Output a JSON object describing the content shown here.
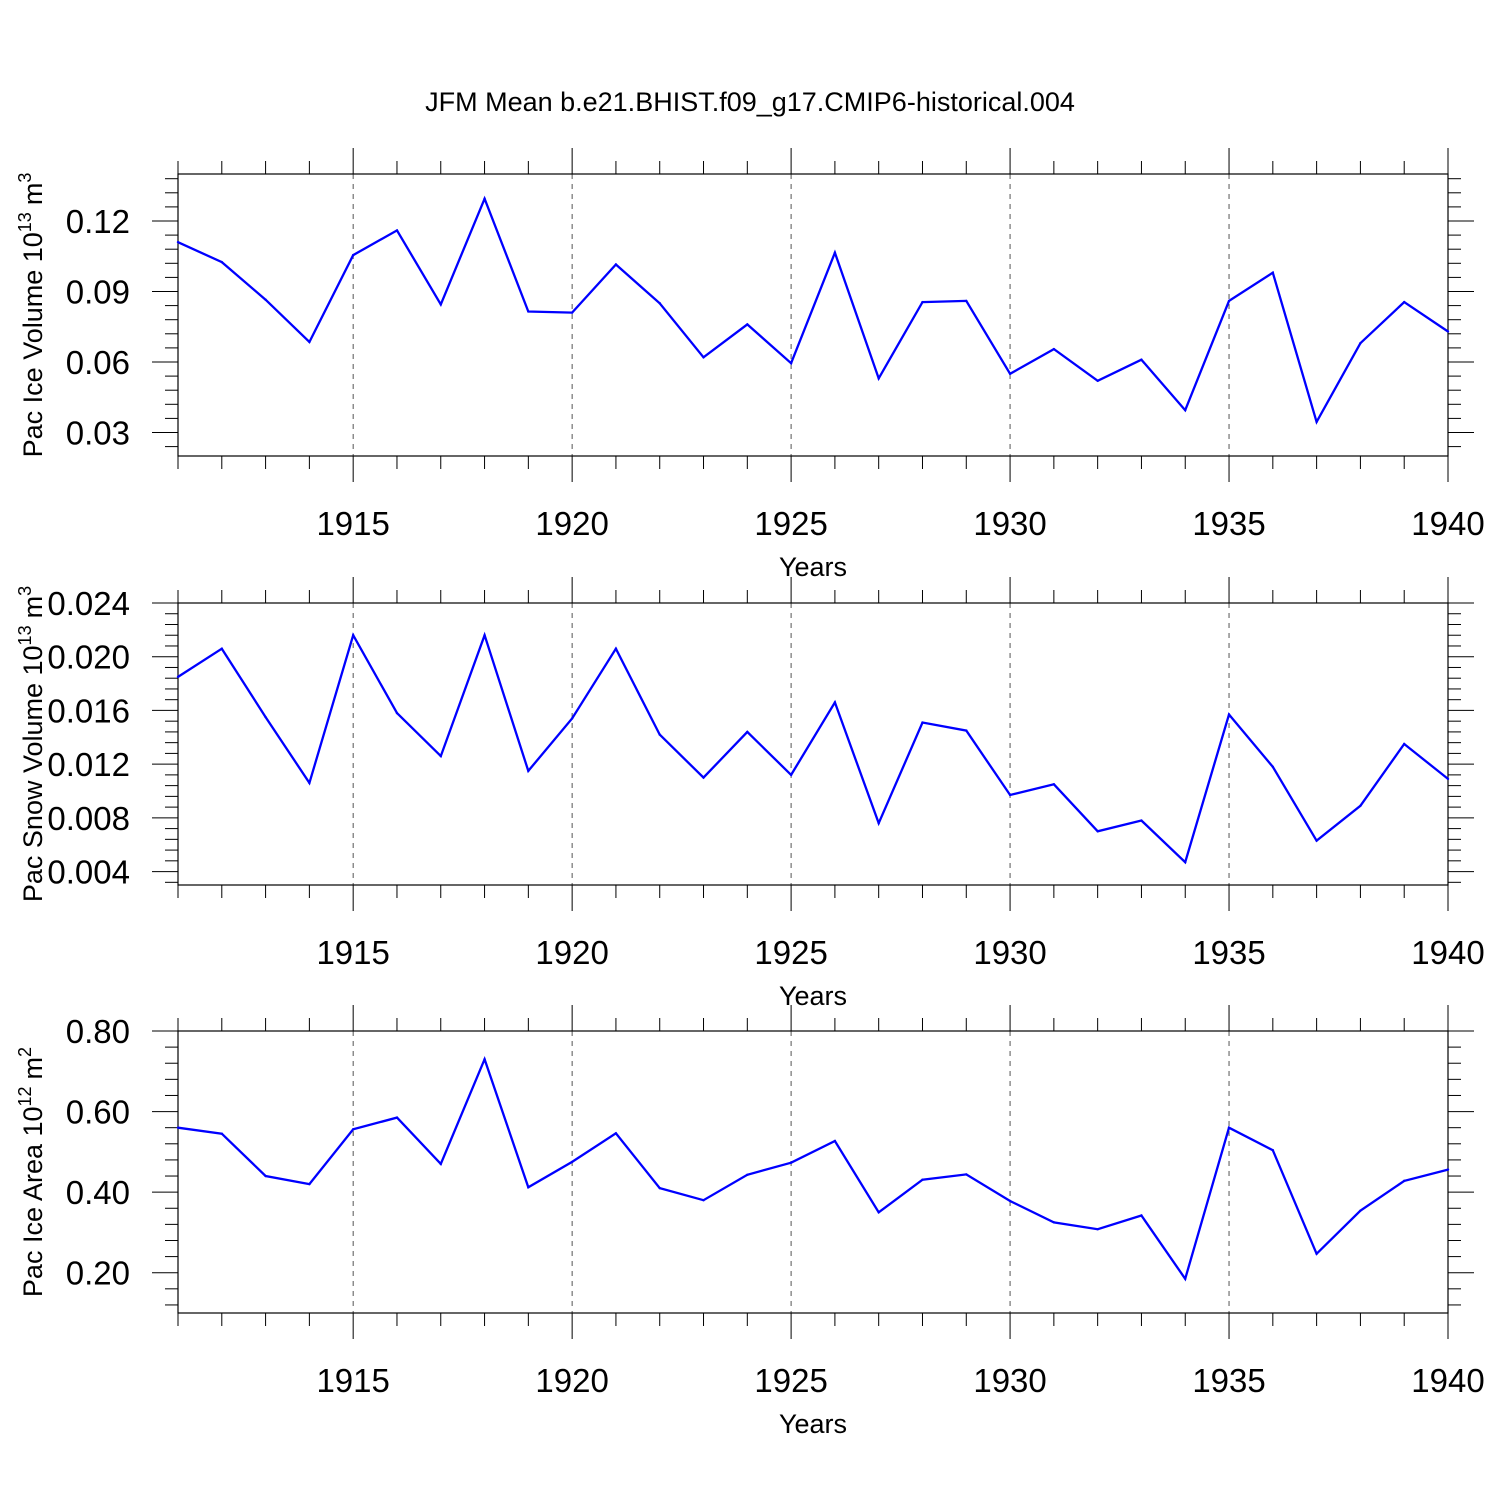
{
  "title": "JFM Mean b.e21.BHIST.f09_g17.CMIP6-historical.004",
  "colors": {
    "line": "#0000ff",
    "axis": "#000000",
    "grid": "#555555"
  },
  "chart_data": [
    {
      "type": "line",
      "ylabel": "Pac Ice Volume 10",
      "ylabel_exp": "13",
      "ylabel_unit": "m",
      "ylabel_unit_exp": "3",
      "xlabel": "Years",
      "xlim": [
        1911,
        1940
      ],
      "ylim": [
        0.02,
        0.14
      ],
      "xticks": [
        "1915",
        "1920",
        "1925",
        "1930",
        "1935",
        "1940"
      ],
      "yticks": [
        "0.03",
        "0.06",
        "0.09",
        "0.12"
      ],
      "x": [
        1911,
        1912,
        1913,
        1914,
        1915,
        1916,
        1917,
        1918,
        1919,
        1920,
        1921,
        1922,
        1923,
        1924,
        1925,
        1926,
        1927,
        1928,
        1929,
        1930,
        1931,
        1932,
        1933,
        1934,
        1935,
        1936,
        1937,
        1938,
        1939,
        1940
      ],
      "values": [
        0.111,
        0.1025,
        0.0865,
        0.0685,
        0.1055,
        0.116,
        0.0845,
        0.1295,
        0.0815,
        0.081,
        0.1015,
        0.085,
        0.062,
        0.076,
        0.0595,
        0.1065,
        0.053,
        0.0855,
        0.086,
        0.055,
        0.0655,
        0.052,
        0.061,
        0.0395,
        0.086,
        0.098,
        0.0345,
        0.068,
        0.0855,
        0.073
      ]
    },
    {
      "type": "line",
      "ylabel": "Pac Snow Volume 10",
      "ylabel_exp": "13",
      "ylabel_unit": "m",
      "ylabel_unit_exp": "3",
      "xlabel": "Years",
      "xlim": [
        1911,
        1940
      ],
      "ylim": [
        0.003,
        0.024
      ],
      "xticks": [
        "1915",
        "1920",
        "1925",
        "1930",
        "1935",
        "1940"
      ],
      "yticks": [
        "0.004",
        "0.008",
        "0.012",
        "0.016",
        "0.020",
        "0.024"
      ],
      "x": [
        1911,
        1912,
        1913,
        1914,
        1915,
        1916,
        1917,
        1918,
        1919,
        1920,
        1921,
        1922,
        1923,
        1924,
        1925,
        1926,
        1927,
        1928,
        1929,
        1930,
        1931,
        1932,
        1933,
        1934,
        1935,
        1936,
        1937,
        1938,
        1939,
        1940
      ],
      "values": [
        0.0185,
        0.0206,
        0.0155,
        0.0106,
        0.0216,
        0.0158,
        0.0126,
        0.0216,
        0.0115,
        0.0154,
        0.0206,
        0.0142,
        0.011,
        0.0144,
        0.0112,
        0.0166,
        0.0076,
        0.0151,
        0.0145,
        0.0097,
        0.0105,
        0.007,
        0.0078,
        0.0047,
        0.0157,
        0.0118,
        0.0063,
        0.0089,
        0.0135,
        0.0109
      ]
    },
    {
      "type": "line",
      "ylabel": "Pac Ice Area 10",
      "ylabel_exp": "12",
      "ylabel_unit": "m",
      "ylabel_unit_exp": "2",
      "xlabel": "Years",
      "xlim": [
        1911,
        1940
      ],
      "ylim": [
        0.1,
        0.8
      ],
      "xticks": [
        "1915",
        "1920",
        "1925",
        "1930",
        "1935",
        "1940"
      ],
      "yticks": [
        "0.20",
        "0.40",
        "0.60",
        "0.80"
      ],
      "x": [
        1911,
        1912,
        1913,
        1914,
        1915,
        1916,
        1917,
        1918,
        1919,
        1920,
        1921,
        1922,
        1923,
        1924,
        1925,
        1926,
        1927,
        1928,
        1929,
        1930,
        1931,
        1932,
        1933,
        1934,
        1935,
        1936,
        1937,
        1938,
        1939,
        1940
      ],
      "values": [
        0.56,
        0.545,
        0.44,
        0.42,
        0.556,
        0.585,
        0.47,
        0.73,
        0.412,
        0.475,
        0.546,
        0.41,
        0.38,
        0.443,
        0.473,
        0.527,
        0.35,
        0.431,
        0.444,
        0.378,
        0.325,
        0.308,
        0.342,
        0.185,
        0.56,
        0.504,
        0.247,
        0.354,
        0.428,
        0.456
      ]
    }
  ]
}
